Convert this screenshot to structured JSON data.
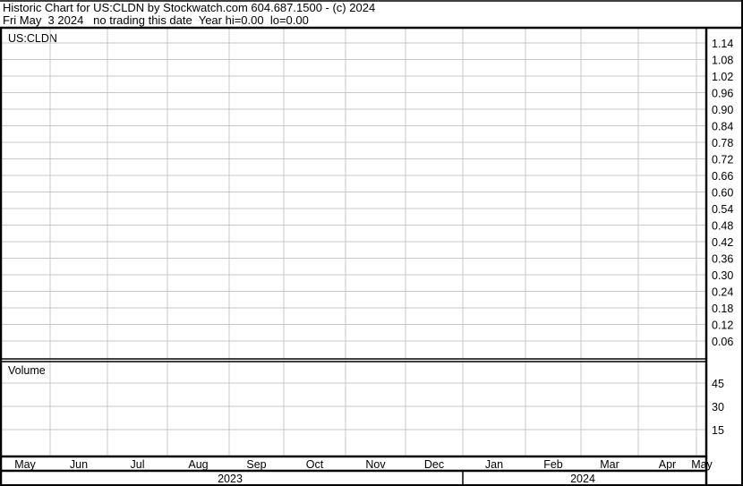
{
  "header": {
    "title": "Historic Chart for US:CLDN by Stockwatch.com 604.687.1500 - (c) 2024",
    "subtitle": "Fri May  3 2024   no trading this date  Year hi=0.00  lo=0.00"
  },
  "chart_data": [
    {
      "type": "line",
      "title": "US:CLDN",
      "series": [],
      "y_ticks": [
        "1.14",
        "1.08",
        "1.02",
        "0.96",
        "0.90",
        "0.84",
        "0.78",
        "0.72",
        "0.66",
        "0.60",
        "0.54",
        "0.48",
        "0.42",
        "0.36",
        "0.30",
        "0.24",
        "0.18",
        "0.12",
        "0.06"
      ],
      "ylim": [
        0.06,
        1.14
      ],
      "y_axis_side": "right",
      "grid": true
    },
    {
      "type": "bar",
      "title": "Volume",
      "series": [],
      "y_ticks": [
        "45",
        "30",
        "15"
      ],
      "y_axis_side": "right",
      "grid": true
    }
  ],
  "x_axis": {
    "months": [
      "May",
      "Jun",
      "Jul",
      "Aug",
      "Sep",
      "Oct",
      "Nov",
      "Dec",
      "Jan",
      "Feb",
      "Mar",
      "Apr",
      "May"
    ],
    "years": [
      "2023",
      "2024"
    ]
  },
  "colors": {
    "grid": "#c8c8c8",
    "border": "#000000"
  }
}
